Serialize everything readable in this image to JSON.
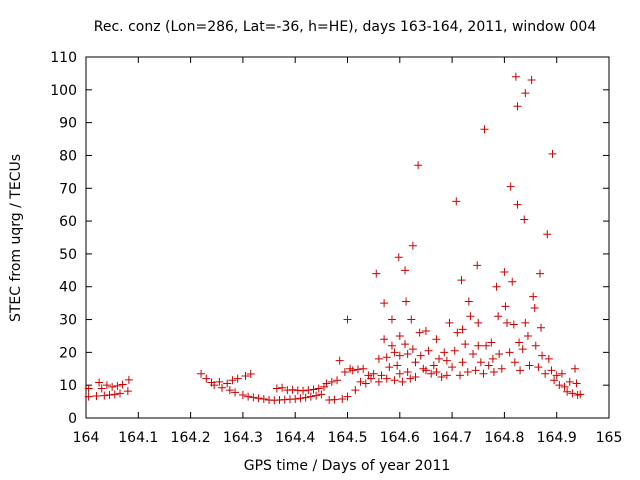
{
  "chart_data": {
    "type": "scatter",
    "title": "Rec. conz (Lon=286, Lat=-36, h=HE), days 163-164, 2011, window 004",
    "xlabel": "GPS time / Days of year 2011",
    "ylabel": "STEC from uqrg / TECUs",
    "xlim": [
      164,
      165
    ],
    "ylim": [
      0,
      110
    ],
    "xticks": [
      "164",
      "164.1",
      "164.2",
      "164.3",
      "164.4",
      "164.5",
      "164.6",
      "164.7",
      "164.8",
      "164.9",
      "165"
    ],
    "yticks": [
      "0",
      "10",
      "20",
      "30",
      "40",
      "50",
      "60",
      "70",
      "80",
      "90",
      "100",
      "110"
    ],
    "grid": false,
    "legend": "none",
    "colors": {
      "points": "#cc0000",
      "axes": "#000000",
      "background": "#ffffff"
    },
    "series": [
      {
        "points": [
          [
            164.005,
            9.0
          ],
          [
            164.005,
            6.5
          ],
          [
            164.02,
            6.7
          ],
          [
            164.025,
            10.8
          ],
          [
            164.03,
            9.0
          ],
          [
            164.035,
            6.8
          ],
          [
            164.04,
            10.0
          ],
          [
            164.045,
            7.0
          ],
          [
            164.05,
            9.5
          ],
          [
            164.055,
            7.2
          ],
          [
            164.06,
            9.8
          ],
          [
            164.065,
            7.5
          ],
          [
            164.07,
            10.2
          ],
          [
            164.08,
            8.2
          ],
          [
            164.082,
            11.6
          ],
          [
            164.22,
            13.5
          ],
          [
            164.23,
            12.0
          ],
          [
            164.24,
            10.8
          ],
          [
            164.245,
            10.0
          ],
          [
            164.255,
            11.0
          ],
          [
            164.26,
            9.2
          ],
          [
            164.27,
            10.5
          ],
          [
            164.275,
            8.5
          ],
          [
            164.28,
            11.5
          ],
          [
            164.285,
            7.8
          ],
          [
            164.29,
            12.0
          ],
          [
            164.3,
            7.0
          ],
          [
            164.305,
            12.8
          ],
          [
            164.31,
            6.5
          ],
          [
            164.315,
            13.4
          ],
          [
            164.32,
            6.3
          ],
          [
            164.33,
            6.0
          ],
          [
            164.34,
            5.8
          ],
          [
            164.35,
            5.5
          ],
          [
            164.36,
            5.4
          ],
          [
            164.365,
            9.0
          ],
          [
            164.37,
            5.5
          ],
          [
            164.375,
            9.2
          ],
          [
            164.38,
            5.6
          ],
          [
            164.385,
            8.5
          ],
          [
            164.39,
            5.7
          ],
          [
            164.395,
            8.6
          ],
          [
            164.4,
            5.8
          ],
          [
            164.405,
            8.4
          ],
          [
            164.41,
            6.0
          ],
          [
            164.415,
            8.3
          ],
          [
            164.42,
            6.2
          ],
          [
            164.425,
            8.5
          ],
          [
            164.43,
            6.5
          ],
          [
            164.435,
            8.7
          ],
          [
            164.44,
            6.8
          ],
          [
            164.445,
            9.0
          ],
          [
            164.45,
            7.2
          ],
          [
            164.455,
            9.5
          ],
          [
            164.46,
            10.5
          ],
          [
            164.465,
            5.5
          ],
          [
            164.47,
            11.0
          ],
          [
            164.475,
            5.6
          ],
          [
            164.48,
            11.5
          ],
          [
            164.485,
            17.5
          ],
          [
            164.49,
            5.8
          ],
          [
            164.495,
            14.0
          ],
          [
            164.5,
            30.0
          ],
          [
            164.5,
            6.5
          ],
          [
            164.505,
            15.0
          ],
          [
            164.51,
            14.5
          ],
          [
            164.515,
            8.5
          ],
          [
            164.52,
            14.8
          ],
          [
            164.525,
            11.0
          ],
          [
            164.53,
            15.0
          ],
          [
            164.535,
            10.5
          ],
          [
            164.54,
            13.0
          ],
          [
            164.545,
            12.0
          ],
          [
            164.55,
            13.5
          ],
          [
            164.555,
            44.0
          ],
          [
            164.56,
            18.0
          ],
          [
            164.56,
            11.0
          ],
          [
            164.565,
            13.0
          ],
          [
            164.57,
            35.0
          ],
          [
            164.57,
            24.0
          ],
          [
            164.575,
            18.5
          ],
          [
            164.575,
            12.0
          ],
          [
            164.58,
            15.5
          ],
          [
            164.585,
            30.0
          ],
          [
            164.585,
            22.0
          ],
          [
            164.59,
            20.0
          ],
          [
            164.59,
            11.5
          ],
          [
            164.595,
            16.0
          ],
          [
            164.598,
            49.0
          ],
          [
            164.6,
            25.0
          ],
          [
            164.6,
            19.0
          ],
          [
            164.6,
            13.5
          ],
          [
            164.605,
            11.0
          ],
          [
            164.61,
            45.0
          ],
          [
            164.61,
            22.5
          ],
          [
            164.612,
            35.5
          ],
          [
            164.615,
            19.5
          ],
          [
            164.615,
            14.0
          ],
          [
            164.62,
            12.0
          ],
          [
            164.622,
            30.0
          ],
          [
            164.625,
            52.5
          ],
          [
            164.625,
            21.0
          ],
          [
            164.63,
            17.0
          ],
          [
            164.63,
            12.5
          ],
          [
            164.635,
            77.0
          ],
          [
            164.638,
            26.0
          ],
          [
            164.64,
            19.0
          ],
          [
            164.645,
            15.0
          ],
          [
            164.65,
            26.5
          ],
          [
            164.65,
            14.5
          ],
          [
            164.655,
            20.5
          ],
          [
            164.66,
            13.5
          ],
          [
            164.665,
            16.0
          ],
          [
            164.67,
            24.0
          ],
          [
            164.67,
            14.0
          ],
          [
            164.675,
            18.0
          ],
          [
            164.68,
            12.5
          ],
          [
            164.685,
            20.0
          ],
          [
            164.69,
            17.5
          ],
          [
            164.69,
            13.0
          ],
          [
            164.695,
            29.0
          ],
          [
            164.7,
            15.5
          ],
          [
            164.705,
            20.5
          ],
          [
            164.708,
            66.0
          ],
          [
            164.71,
            26.0
          ],
          [
            164.715,
            13.0
          ],
          [
            164.718,
            42.0
          ],
          [
            164.72,
            27.0
          ],
          [
            164.72,
            17.0
          ],
          [
            164.725,
            22.5
          ],
          [
            164.73,
            14.0
          ],
          [
            164.732,
            35.5
          ],
          [
            164.735,
            31.0
          ],
          [
            164.74,
            19.5
          ],
          [
            164.745,
            14.5
          ],
          [
            164.748,
            46.5
          ],
          [
            164.75,
            29.0
          ],
          [
            164.75,
            22.0
          ],
          [
            164.755,
            17.0
          ],
          [
            164.76,
            13.5
          ],
          [
            164.762,
            88.0
          ],
          [
            164.765,
            22.0
          ],
          [
            164.77,
            16.0
          ],
          [
            164.775,
            23.0
          ],
          [
            164.778,
            18.0
          ],
          [
            164.78,
            14.0
          ],
          [
            164.785,
            40.0
          ],
          [
            164.788,
            31.0
          ],
          [
            164.79,
            19.5
          ],
          [
            164.795,
            15.0
          ],
          [
            164.8,
            44.5
          ],
          [
            164.802,
            34.0
          ],
          [
            164.805,
            29.0
          ],
          [
            164.81,
            20.0
          ],
          [
            164.812,
            70.5
          ],
          [
            164.815,
            41.5
          ],
          [
            164.818,
            28.5
          ],
          [
            164.82,
            17.0
          ],
          [
            164.822,
            104.0
          ],
          [
            164.825,
            95.0
          ],
          [
            164.825,
            65.0
          ],
          [
            164.828,
            23.0
          ],
          [
            164.83,
            14.5
          ],
          [
            164.835,
            21.0
          ],
          [
            164.838,
            60.5
          ],
          [
            164.84,
            99.0
          ],
          [
            164.84,
            29.0
          ],
          [
            164.845,
            25.0
          ],
          [
            164.848,
            16.0
          ],
          [
            164.852,
            103.0
          ],
          [
            164.855,
            37.0
          ],
          [
            164.858,
            33.5
          ],
          [
            164.86,
            22.0
          ],
          [
            164.865,
            15.5
          ],
          [
            164.868,
            44.0
          ],
          [
            164.87,
            27.5
          ],
          [
            164.872,
            19.0
          ],
          [
            164.878,
            13.5
          ],
          [
            164.882,
            56.0
          ],
          [
            164.885,
            18.0
          ],
          [
            164.89,
            14.5
          ],
          [
            164.892,
            80.5
          ],
          [
            164.895,
            11.5
          ],
          [
            164.9,
            13.0
          ],
          [
            164.905,
            10.0
          ],
          [
            164.91,
            13.5
          ],
          [
            164.915,
            9.5
          ],
          [
            164.92,
            8.0
          ],
          [
            164.925,
            11.0
          ],
          [
            164.93,
            7.5
          ],
          [
            164.935,
            15.0
          ],
          [
            164.938,
            10.5
          ],
          [
            164.94,
            7.0
          ],
          [
            164.945,
            7.2
          ]
        ]
      }
    ]
  }
}
